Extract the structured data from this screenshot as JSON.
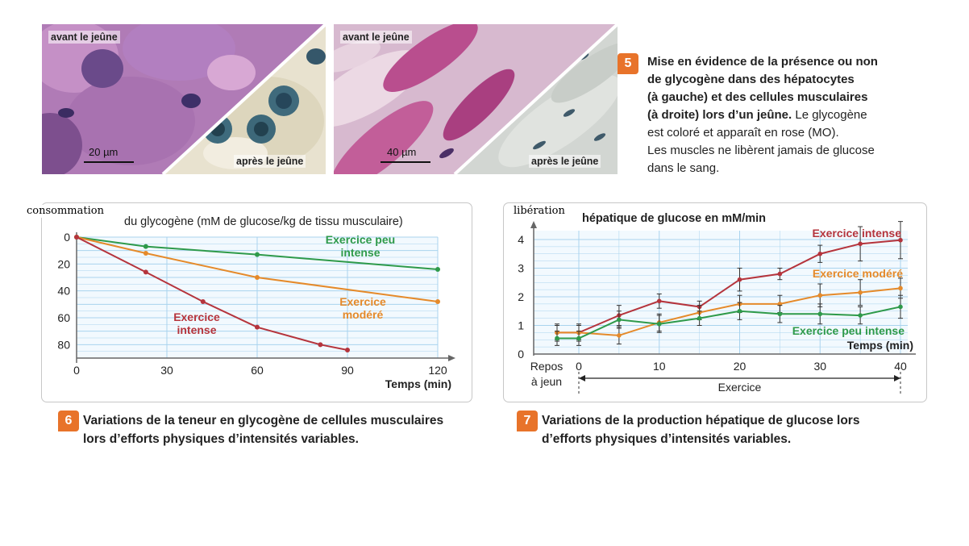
{
  "figure5": {
    "number": "5",
    "left_photo": {
      "label_top": "avant le jeûne",
      "label_bottom": "après le jeûne",
      "scale": "20 µm"
    },
    "right_photo": {
      "label_top": "avant le jeûne",
      "label_bottom": "après le jeûne",
      "scale": "40 µm"
    },
    "caption_bold_1": "Mise en évidence de la présence ou non",
    "caption_bold_2": "de glycogène dans des hépatocytes",
    "caption_bold_3": "(à gauche) et des cellules musculaires",
    "caption_bold_4": "(à droite) lors d’un jeûne.",
    "caption_text_4": " Le glycogène",
    "caption_text_5": "est coloré et apparaît en rose (MO).",
    "caption_text_6": "Les muscles ne libèrent jamais de glucose",
    "caption_text_7": "dans le sang."
  },
  "figure6": {
    "number": "6",
    "overlay_label": "consommation",
    "caption_1": "Variations de la teneur en glycogène de cellules musculaires",
    "caption_2": "lors d’efforts physiques d’intensités variables."
  },
  "figure7": {
    "number": "7",
    "overlay_label": "libération",
    "caption_1": "Variations de la production hépatique de glucose lors",
    "caption_2": "d’efforts physiques d’intensités variables.",
    "rest_label_1": "Repos",
    "rest_label_2": "à jeun",
    "exercise_label": "Exercice"
  },
  "colors": {
    "intense": "#b5343c",
    "modere": "#e58a2a",
    "peu": "#2e9a4a",
    "grid": "#a9d3ee",
    "axis": "#666666"
  },
  "chart_data": [
    {
      "type": "line",
      "title": "du glycogène (mM de glucose/kg de tissu musculaire)",
      "xlabel": "Temps (min)",
      "ylabel": "",
      "xlim": [
        0,
        120
      ],
      "ylim": [
        0,
        90
      ],
      "y_inverted": true,
      "xticks": [
        0,
        30,
        60,
        90,
        120
      ],
      "yticks": [
        0,
        20,
        40,
        60,
        80
      ],
      "grid": true,
      "series": [
        {
          "name": "Exercice peu intense",
          "label_1": "Exercice peu",
          "label_2": "intense",
          "color_key": "peu",
          "x": [
            0,
            23,
            60,
            120
          ],
          "y": [
            0,
            7,
            13,
            24
          ]
        },
        {
          "name": "Exercice modéré",
          "label_1": "Exercice",
          "label_2": "modéré",
          "color_key": "modere",
          "x": [
            0,
            23,
            60,
            120
          ],
          "y": [
            0,
            12,
            30,
            48
          ]
        },
        {
          "name": "Exercice intense",
          "label_1": "Exercice",
          "label_2": "intense",
          "color_key": "intense",
          "x": [
            0,
            23,
            42,
            60,
            81,
            90
          ],
          "y": [
            0,
            26,
            48,
            67,
            80,
            84
          ]
        }
      ]
    },
    {
      "type": "line",
      "title": "hépatique de glucose en mM/min",
      "xlabel": "Temps (min)",
      "ylabel": "",
      "xlim": [
        -5,
        40
      ],
      "ylim": [
        0,
        4.2
      ],
      "xticks": [
        0,
        10,
        20,
        30,
        40
      ],
      "yticks": [
        0,
        1,
        2,
        3,
        4
      ],
      "grid": true,
      "series": [
        {
          "name": "Exercice intense",
          "color_key": "intense",
          "x": [
            -3,
            0,
            5,
            10,
            15,
            20,
            25,
            30,
            35,
            40
          ],
          "y": [
            0.75,
            0.75,
            1.35,
            1.85,
            1.65,
            2.6,
            2.8,
            3.5,
            3.85,
            3.98
          ],
          "err": [
            0.3,
            0.3,
            0.35,
            0.25,
            0.2,
            0.4,
            0.2,
            0.3,
            0.6,
            0.65
          ]
        },
        {
          "name": "Exercice modéré",
          "color_key": "modere",
          "x": [
            -3,
            0,
            5,
            10,
            15,
            20,
            25,
            30,
            35,
            40
          ],
          "y": [
            0.75,
            0.75,
            0.65,
            1.1,
            1.45,
            1.75,
            1.75,
            2.05,
            2.15,
            2.3
          ],
          "err": [
            0.25,
            0.25,
            0.3,
            0.3,
            0.25,
            0.3,
            0.3,
            0.4,
            0.45,
            0.35
          ]
        },
        {
          "name": "Exercice peu intense",
          "color_key": "peu",
          "x": [
            -3,
            0,
            5,
            10,
            15,
            20,
            25,
            30,
            35,
            40
          ],
          "y": [
            0.55,
            0.55,
            1.2,
            1.05,
            1.25,
            1.5,
            1.4,
            1.4,
            1.35,
            1.65
          ],
          "err": [
            0.25,
            0.25,
            0.3,
            0.3,
            0.25,
            0.3,
            0.3,
            0.35,
            0.3,
            0.4
          ]
        }
      ]
    }
  ]
}
